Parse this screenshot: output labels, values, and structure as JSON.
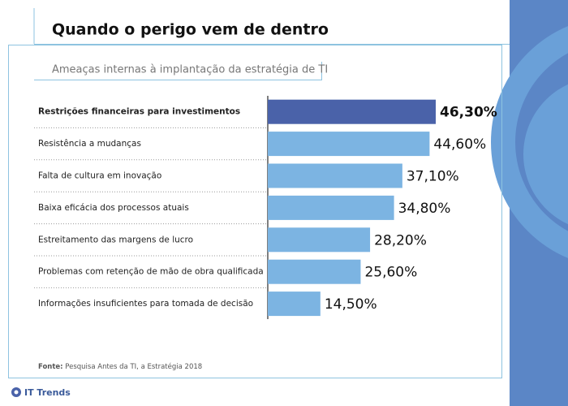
{
  "chart_data": {
    "type": "bar",
    "orientation": "horizontal",
    "title": "Quando o perigo vem de dentro",
    "subtitle": "Ameaças internas à implantação da estratégia de TI",
    "categories": [
      "Restrições financeiras para investimentos",
      "Resistência a mudanças",
      "Falta de cultura em inovação",
      "Baixa eficácia dos processos atuais",
      "Estreitamento das margens de lucro",
      "Problemas com retenção de mão de obra qualificada",
      "Informações insuficientes para tomada de decisão"
    ],
    "values": [
      46.3,
      44.6,
      37.1,
      34.8,
      28.2,
      25.6,
      14.5
    ],
    "value_labels": [
      "46,30%",
      "44,60%",
      "37,10%",
      "34,80%",
      "28,20%",
      "25,60%",
      "14,50%"
    ],
    "colors": [
      "#4a62a9",
      "#7cb4e2",
      "#7cb4e2",
      "#7cb4e2",
      "#7cb4e2",
      "#7cb4e2",
      "#7cb4e2"
    ],
    "source_label": "Fonte:",
    "source": "Pesquisa Antes da TI, a Estratégia 2018",
    "brand": "IT Trends"
  }
}
